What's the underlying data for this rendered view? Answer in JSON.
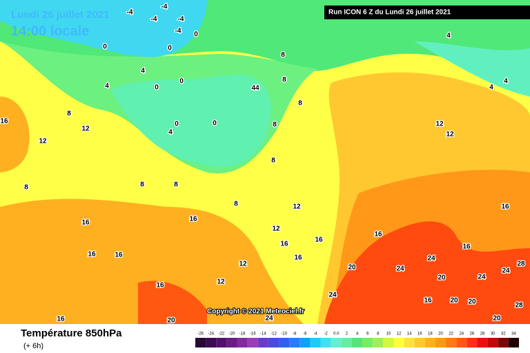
{
  "header": {
    "date": "Lundi 26 juillet 2021",
    "time": "14:00 locale",
    "run": "Run ICON 6 Z du Lundi 26 juillet 2021"
  },
  "copyright": "Copyright © 2021 Meteociel.fr",
  "footer": {
    "title": "Température 850hPa",
    "lead": "(+ 6h)"
  },
  "scale": {
    "labels": [
      -26,
      -24,
      -22,
      -20,
      -18,
      -16,
      -14,
      -12,
      -10,
      -8,
      -6,
      -4,
      -2,
      {
        "value": 0,
        "label": "0.0"
      },
      2,
      4,
      6,
      8,
      10,
      12,
      14,
      16,
      18,
      20,
      22,
      24,
      26,
      28,
      30,
      32,
      34
    ],
    "colors": [
      "#2a0a35",
      "#3d0b52",
      "#55106e",
      "#6c1a88",
      "#842aa0",
      "#9b3cb8",
      "#6a3ad0",
      "#4a4ae0",
      "#3060f0",
      "#2080ff",
      "#10a0ff",
      "#20c8ff",
      "#40e0f0",
      "#60f0d0",
      "#60f0a0",
      "#50e878",
      "#70f060",
      "#a0f050",
      "#d0f840",
      "#ffff40",
      "#ffe040",
      "#ffc830",
      "#ffb020",
      "#ff9818",
      "#ff7a10",
      "#ff5810",
      "#ff3010",
      "#e81010",
      "#c00808",
      "#800404",
      "#200000"
    ]
  },
  "map_labels": [
    -4,
    -4,
    -4,
    -4,
    -4,
    0,
    0,
    0,
    0,
    0,
    4,
    4,
    44,
    8,
    8,
    8,
    8,
    12,
    16,
    12,
    4,
    0,
    0,
    8,
    8,
    8,
    8,
    8,
    8,
    12,
    16,
    16,
    12,
    16,
    16,
    16,
    16,
    16,
    12,
    20,
    24,
    24,
    20,
    16,
    24,
    16,
    20,
    20,
    24,
    24,
    28,
    28,
    20,
    16,
    20,
    24,
    12,
    16,
    16,
    12,
    12,
    4,
    4,
    4,
    16
  ]
}
